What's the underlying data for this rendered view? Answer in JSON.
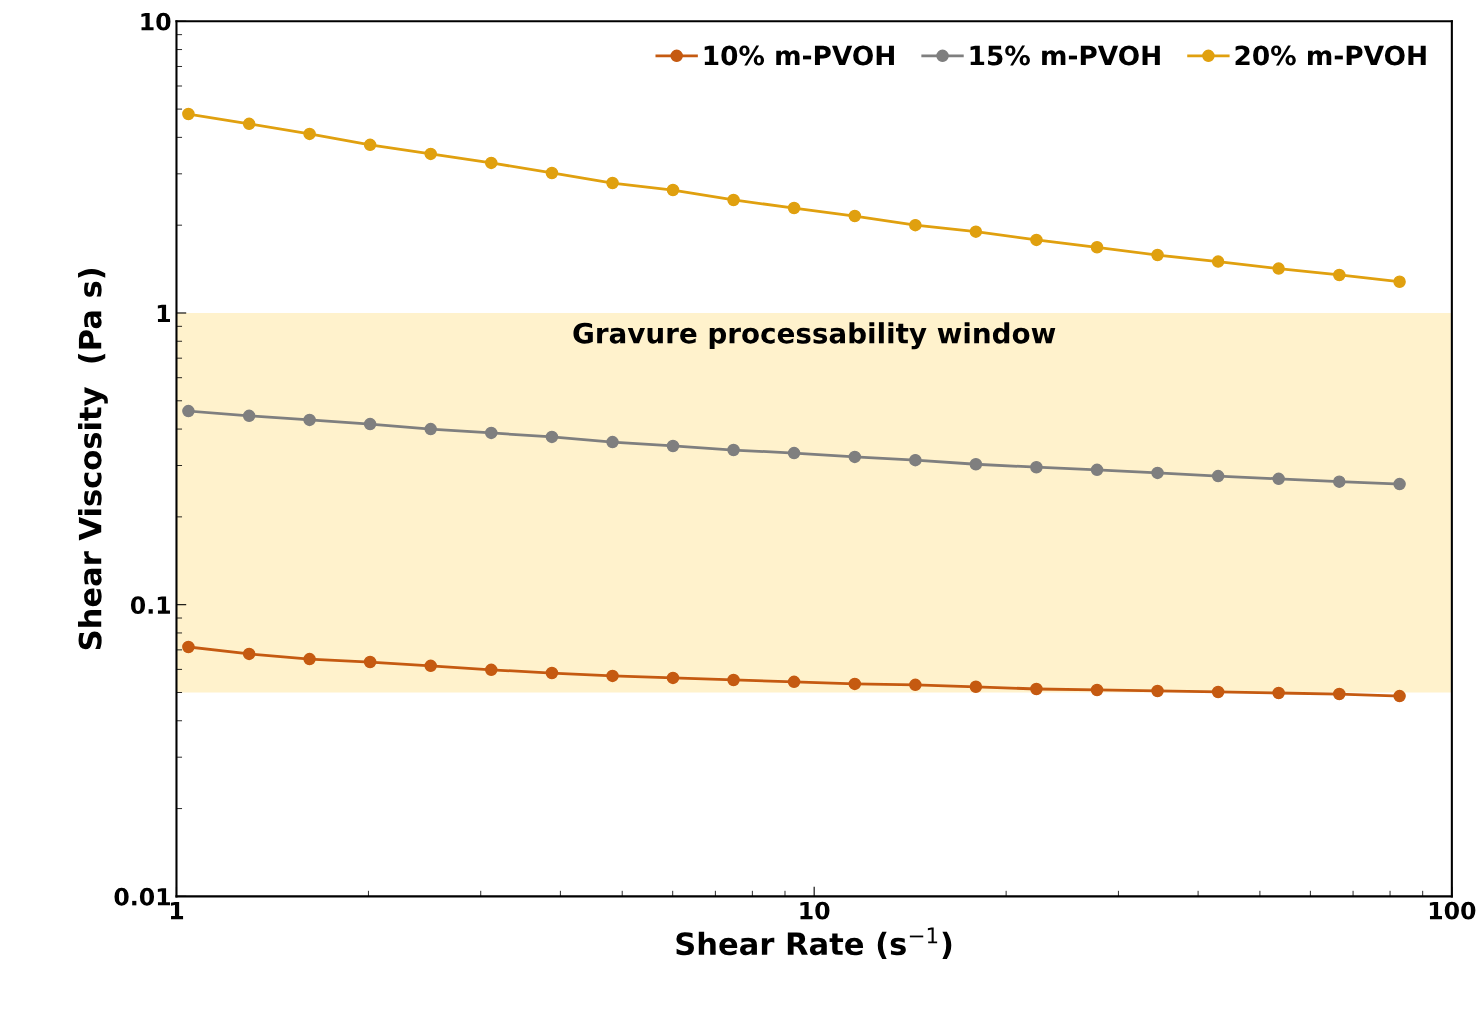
{
  "chart_data": {
    "type": "line",
    "xlabel": "Shear Rate (s$^{−1}$)",
    "ylabel": "Shear Viscosity  (Pa s)",
    "x": [
      1.044,
      1.3,
      1.617,
      2.012,
      2.504,
      3.116,
      3.879,
      4.828,
      6.006,
      7.474,
      9.3,
      11.58,
      14.41,
      17.93,
      22.31,
      27.77,
      34.55,
      43.0,
      53.5,
      66.6,
      82.8
    ],
    "series": [
      {
        "name": "10% m-PVOH",
        "color": "#c55a11",
        "values": [
          0.0716,
          0.0678,
          0.0651,
          0.0636,
          0.0617,
          0.0598,
          0.0583,
          0.057,
          0.0561,
          0.0552,
          0.0544,
          0.0535,
          0.0531,
          0.0523,
          0.0514,
          0.051,
          0.0506,
          0.0502,
          0.0498,
          0.0494,
          0.0486
        ]
      },
      {
        "name": "15% m-PVOH",
        "color": "#7f7f7f",
        "values": [
          0.461,
          0.444,
          0.43,
          0.416,
          0.4,
          0.388,
          0.376,
          0.361,
          0.35,
          0.339,
          0.331,
          0.321,
          0.313,
          0.303,
          0.296,
          0.29,
          0.283,
          0.276,
          0.27,
          0.264,
          0.259
        ]
      },
      {
        "name": "20% m-PVOH",
        "color": "#e0a00f",
        "values": [
          4.81,
          4.45,
          4.11,
          3.77,
          3.51,
          3.27,
          3.02,
          2.79,
          2.64,
          2.44,
          2.29,
          2.15,
          2.0,
          1.9,
          1.78,
          1.68,
          1.58,
          1.5,
          1.42,
          1.35,
          1.28
        ]
      }
    ],
    "bands": [
      {
        "axis": "y",
        "from": 0.05,
        "to": 1,
        "label": "Gravure processability window",
        "color": "#fff2cc"
      }
    ],
    "log": "xy",
    "xlim": [
      1,
      100
    ],
    "ylim": [
      0.01,
      10
    ],
    "xticks": [
      1,
      10,
      100
    ],
    "yticks": [
      0.01,
      0.1,
      1,
      10
    ],
    "grid": false,
    "legend": "top right",
    "marker": "circle",
    "line_style": "solid"
  }
}
